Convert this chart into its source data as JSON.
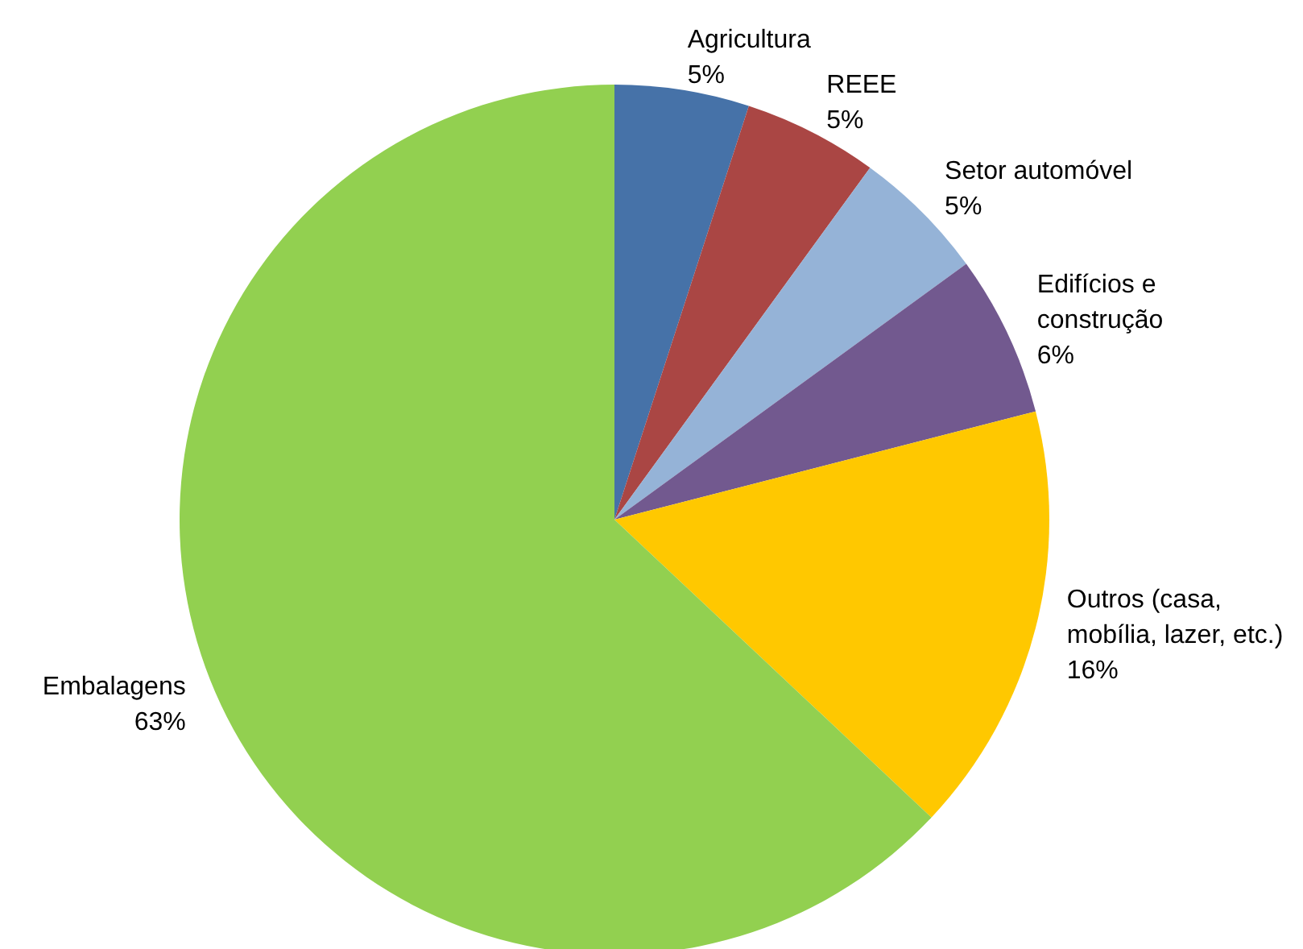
{
  "chart_data": {
    "type": "pie",
    "categories": [
      "Agricultura",
      "REEE",
      "Setor automóvel",
      "Edifícios e construção",
      "Outros (casa, mobília, lazer, etc.)",
      "Embalagens"
    ],
    "values": [
      5,
      5,
      5,
      6,
      16,
      63
    ],
    "colors": [
      "#4672a8",
      "#aa4644",
      "#95b3d7",
      "#72598f",
      "#ffc800",
      "#92d050"
    ],
    "value_labels": [
      "5%",
      "5%",
      "5%",
      "6%",
      "16%",
      "63%"
    ]
  }
}
